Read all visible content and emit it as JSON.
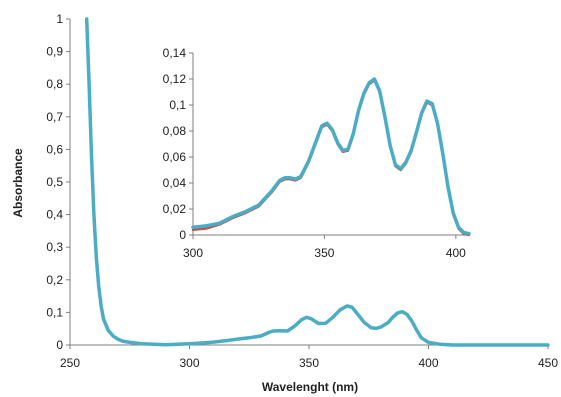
{
  "colors": {
    "main_series": "#4bacc6",
    "inset_series_a": "#c0504d",
    "inset_series_b": "#4bacc6",
    "axis": "#7f7f7f"
  },
  "chart_data": [
    {
      "type": "line",
      "xlabel": "Wavelenght (nm)",
      "ylabel": "Absorbance",
      "xlim": [
        250,
        450
      ],
      "ylim": [
        0,
        1
      ],
      "x_ticks": [
        "250",
        "300",
        "350",
        "400",
        "450"
      ],
      "y_ticks": [
        "0",
        "0,1",
        "0,2",
        "0,3",
        "0,4",
        "0,5",
        "0,6",
        "0,7",
        "0,8",
        "0,9",
        "1"
      ],
      "grid": false,
      "series": [
        {
          "x": [
            257,
            258,
            259,
            260,
            261,
            262,
            263,
            264,
            266,
            268,
            270,
            272,
            275,
            280,
            285,
            290,
            295,
            300,
            305,
            310,
            315,
            320,
            325,
            330,
            333,
            335,
            338,
            341,
            344,
            347,
            349,
            351,
            354,
            357,
            360,
            363,
            366,
            368,
            370,
            373,
            376,
            378,
            380,
            383,
            385,
            387,
            389,
            391,
            393,
            395,
            397,
            400,
            405,
            410,
            420,
            430,
            450
          ],
          "y": [
            1.0,
            0.8,
            0.58,
            0.4,
            0.27,
            0.18,
            0.12,
            0.08,
            0.045,
            0.028,
            0.018,
            0.012,
            0.008,
            0.004,
            0.002,
            0.001,
            0.002,
            0.004,
            0.006,
            0.009,
            0.013,
            0.018,
            0.022,
            0.028,
            0.038,
            0.043,
            0.044,
            0.043,
            0.058,
            0.078,
            0.085,
            0.08,
            0.066,
            0.067,
            0.085,
            0.108,
            0.12,
            0.116,
            0.098,
            0.07,
            0.053,
            0.051,
            0.055,
            0.068,
            0.085,
            0.098,
            0.102,
            0.094,
            0.074,
            0.046,
            0.022,
            0.008,
            0.002,
            0.0,
            0.0,
            0.0,
            0.0
          ]
        }
      ]
    },
    {
      "type": "line",
      "xlabel": "",
      "ylabel": "",
      "xlim": [
        300,
        405
      ],
      "ylim": [
        0,
        0.14
      ],
      "x_ticks": [
        "300",
        "350",
        "400"
      ],
      "y_ticks": [
        "0",
        "0,02",
        "0,04",
        "0,06",
        "0,08",
        "0,1",
        "0,12",
        "0,14"
      ],
      "grid": false,
      "series": [
        {
          "x": [
            300,
            305,
            310,
            315,
            320,
            325,
            330,
            333,
            335,
            337,
            339,
            341,
            344,
            347,
            349,
            351,
            353,
            355,
            357,
            359,
            361,
            363,
            365,
            367,
            369,
            371,
            373,
            375,
            377,
            379,
            381,
            383,
            385,
            387,
            389,
            391,
            393,
            395,
            397,
            399,
            401,
            403,
            405
          ],
          "y": [
            0.004,
            0.005,
            0.008,
            0.013,
            0.017,
            0.022,
            0.033,
            0.041,
            0.043,
            0.043,
            0.042,
            0.044,
            0.056,
            0.072,
            0.083,
            0.085,
            0.08,
            0.07,
            0.064,
            0.065,
            0.077,
            0.095,
            0.108,
            0.116,
            0.119,
            0.11,
            0.09,
            0.068,
            0.053,
            0.05,
            0.055,
            0.064,
            0.078,
            0.093,
            0.102,
            0.1,
            0.085,
            0.062,
            0.036,
            0.016,
            0.005,
            0.001,
            0.0
          ]
        },
        {
          "x": [
            300,
            305,
            310,
            315,
            320,
            325,
            330,
            333,
            335,
            337,
            339,
            341,
            344,
            347,
            349,
            351,
            353,
            355,
            357,
            359,
            361,
            363,
            365,
            367,
            369,
            371,
            373,
            375,
            377,
            379,
            381,
            383,
            385,
            387,
            389,
            391,
            393,
            395,
            397,
            399,
            401,
            403,
            405
          ],
          "y": [
            0.006,
            0.007,
            0.009,
            0.014,
            0.018,
            0.023,
            0.034,
            0.042,
            0.044,
            0.044,
            0.043,
            0.045,
            0.057,
            0.073,
            0.084,
            0.086,
            0.081,
            0.071,
            0.065,
            0.066,
            0.078,
            0.096,
            0.109,
            0.117,
            0.12,
            0.111,
            0.091,
            0.069,
            0.054,
            0.051,
            0.056,
            0.065,
            0.079,
            0.094,
            0.103,
            0.101,
            0.086,
            0.063,
            0.037,
            0.017,
            0.006,
            0.002,
            0.001
          ]
        }
      ]
    }
  ]
}
